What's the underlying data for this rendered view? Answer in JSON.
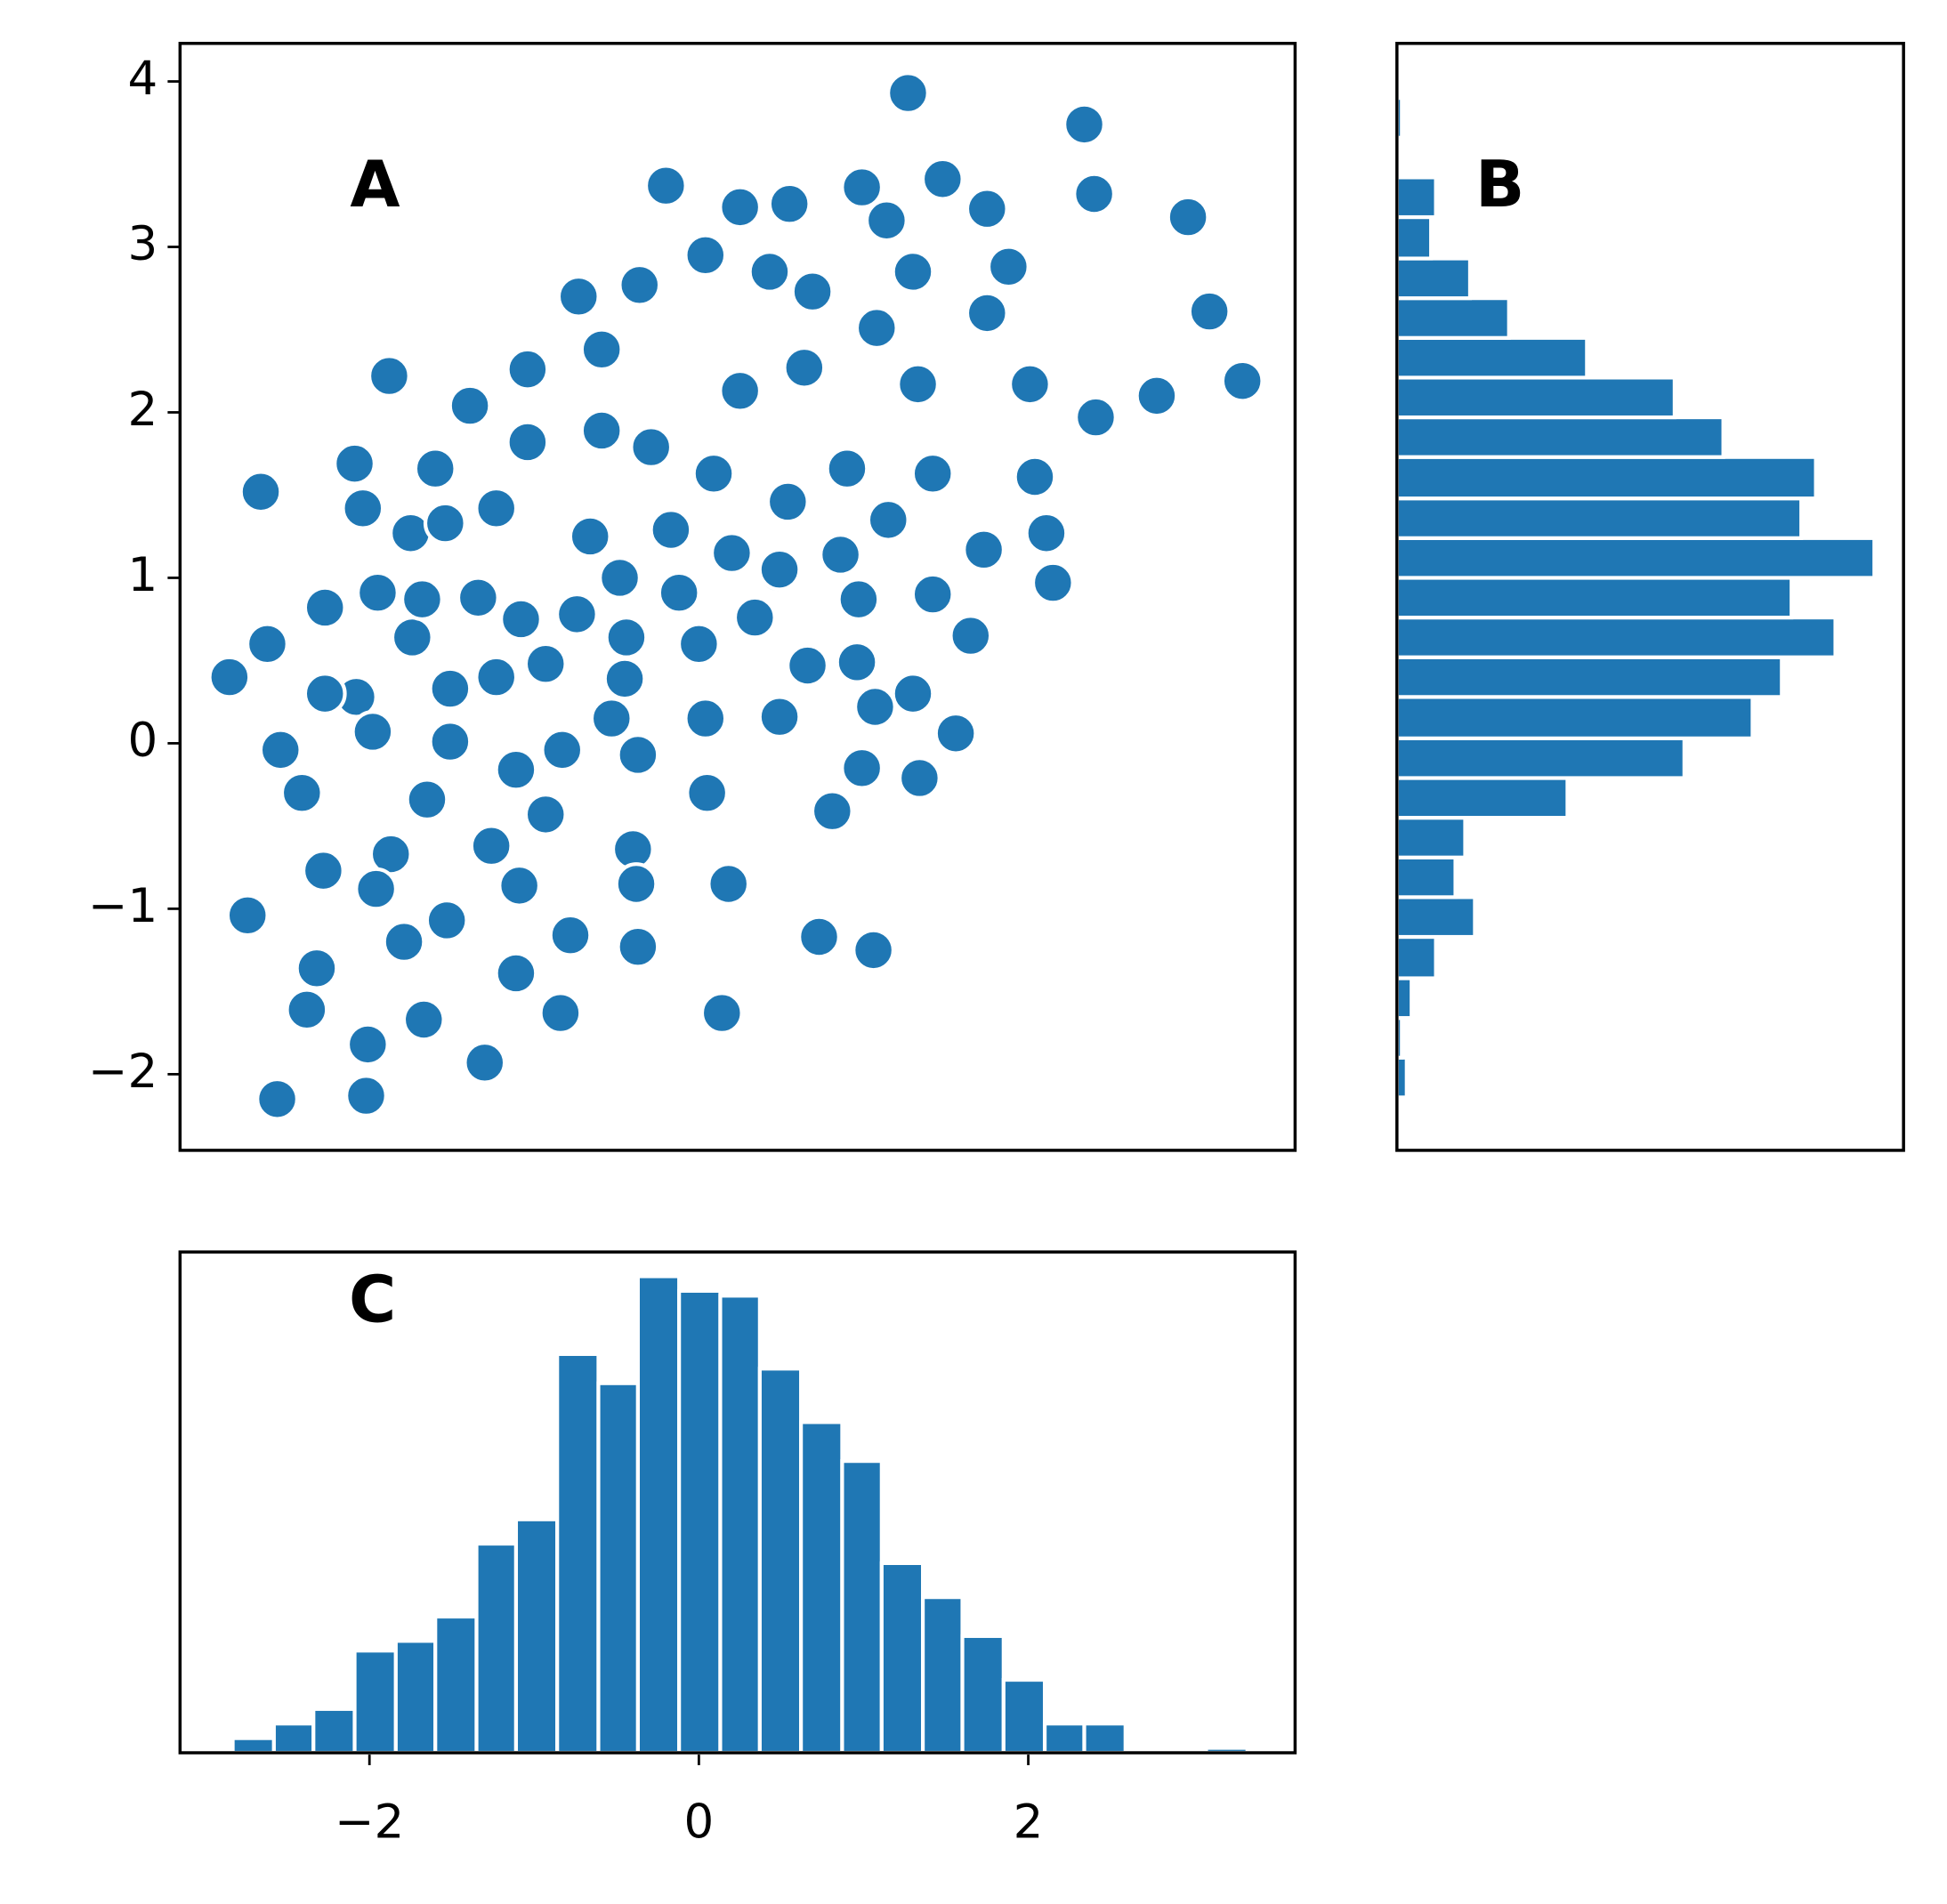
{
  "chart_data": [
    {
      "type": "scatter",
      "annotation": "A",
      "color": "#1f77b4",
      "edgecolor": "#ffffff",
      "xlim": [
        -3.15,
        3.62
      ],
      "ylim": [
        -2.46,
        4.23
      ],
      "yticks": [
        {
          "value": -2,
          "label": "−2"
        },
        {
          "value": -1,
          "label": "−1"
        },
        0,
        1,
        2,
        3,
        4
      ],
      "x": [
        1.27,
        2.34,
        2.4,
        2.97,
        3.1,
        3.3,
        2.78,
        -0.2,
        0.25,
        0.55,
        0.99,
        -1.88,
        -2.66,
        -2.85,
        -2.09,
        -2.74,
        -2.56,
        -2.02,
        -2.01,
        -1.3,
        -1.67,
        -2.38,
        -2.32,
        -0.84,
        0.14,
        0.73,
        1.06,
        1.56,
        1.34,
        -0.37,
        -0.78,
        -1.11,
        -1.79,
        -2.28,
        -2.62,
        -2.27,
        -2.54,
        -2.41,
        2.15,
        2.11,
        2.04,
        2.41,
        2.01,
        1.75,
        1.88,
        1.75,
        1.48,
        1.3,
        1.14,
        0.69,
        0.43,
        0.04,
        -0.36,
        -0.73,
        -0.59,
        -1.04,
        -1.39,
        0.25,
        0.64,
        1.33,
        1.08,
        -0.59,
        -1.04,
        -1.6,
        -2.04,
        -1.75,
        -1.54,
        -1.23,
        -0.29,
        0.09,
        0.54,
        0.9,
        1.42,
        1.15,
        1.73,
        1.42,
        1.65,
        0.97,
        0.86,
        0.48,
        0.2,
        -0.17,
        -0.66,
        -0.48,
        -0.12,
        -0.74,
        -0.93,
        -1.23,
        -1.51,
        -1.74,
        -1.95,
        -1.68,
        -2.08,
        -2.27,
        -1.98,
        -1.51,
        -1.65,
        -1.87,
        -1.96,
        -1.53,
        -1.09,
        -1.26,
        -0.93,
        -1.11,
        -0.83,
        -0.53,
        -0.37,
        -0.45,
        -0.44,
        0.0,
        0.04,
        0.05,
        -0.4,
        0.18,
        -0.38,
        0.66,
        0.96,
        0.49,
        1.07,
        1.3,
        0.81,
        0.99,
        0.49,
        0.34,
        -1.08,
        -1.34
      ],
      "y": [
        3.93,
        3.74,
        3.32,
        3.18,
        2.61,
        2.19,
        2.1,
        3.37,
        3.24,
        3.26,
        3.36,
        2.22,
        1.52,
        0.4,
        1.69,
        -1.04,
        -2.15,
        -2.13,
        -1.82,
        -1.93,
        -1.67,
        -1.61,
        -1.36,
        -1.63,
        -1.63,
        -1.17,
        -1.25,
        0.06,
        -0.21,
        -1.23,
        -1.16,
        -1.39,
        -1.2,
        -0.77,
        0.6,
        0.82,
        -0.04,
        -0.3,
        0.97,
        1.27,
        1.61,
        1.97,
        2.17,
        2.6,
        2.88,
        3.23,
        3.41,
        2.85,
        3.16,
        2.73,
        2.85,
        2.95,
        2.77,
        2.7,
        2.38,
        2.26,
        2.04,
        2.13,
        2.27,
        2.17,
        2.51,
        1.89,
        1.82,
        1.66,
        1.42,
        1.27,
        1.33,
        1.42,
        1.79,
        1.63,
        1.46,
        1.66,
        1.63,
        1.35,
        1.17,
        0.9,
        0.65,
        0.87,
        1.14,
        1.03,
        1.15,
        1.29,
        1.25,
        1.0,
        0.91,
        0.78,
        0.48,
        0.4,
        0.33,
        0.64,
        0.91,
        0.87,
        0.28,
        0.3,
        0.07,
        0.01,
        -0.34,
        -0.67,
        -0.88,
        -1.07,
        -0.86,
        -0.62,
        -0.43,
        -0.16,
        -0.04,
        0.15,
        -0.07,
        0.39,
        0.64,
        0.6,
        0.15,
        -0.3,
        -0.64,
        -0.85,
        -0.85,
        0.47,
        0.49,
        0.16,
        0.22,
        0.3,
        -0.41,
        -0.15,
        1.05,
        0.76,
        0.75,
        0.88
      ]
    },
    {
      "type": "histogram",
      "orientation": "horizontal",
      "annotation": "B",
      "color": "#1f77b4",
      "edgecolor": "#ffffff",
      "xlim": [
        0,
        104
      ],
      "ylim": [
        -2.46,
        4.23
      ],
      "bins": [
        -2.14,
        -1.9,
        -1.66,
        -1.42,
        -1.17,
        -0.93,
        -0.69,
        -0.45,
        -0.21,
        0.03,
        0.28,
        0.52,
        0.76,
        1.0,
        1.24,
        1.48,
        1.73,
        1.97,
        2.21,
        2.45,
        2.69,
        2.93,
        3.18,
        3.42,
        3.66,
        3.9
      ],
      "values": [
        2,
        1,
        3,
        8,
        16,
        12,
        14,
        35,
        59,
        73,
        79,
        90,
        81,
        98,
        83,
        86,
        67,
        57,
        39,
        23,
        15,
        7,
        8,
        0,
        1
      ]
    },
    {
      "type": "histogram",
      "orientation": "vertical",
      "annotation": "C",
      "color": "#1f77b4",
      "edgecolor": "#ffffff",
      "xlim": [
        -3.15,
        3.62
      ],
      "ylim": [
        0,
        103
      ],
      "xticks": [
        {
          "value": -2,
          "label": "−2"
        },
        0,
        2
      ],
      "bins": [
        -2.83,
        -2.58,
        -2.34,
        -2.09,
        -1.84,
        -1.6,
        -1.35,
        -1.11,
        -0.86,
        -0.61,
        -0.37,
        -0.12,
        0.13,
        0.37,
        0.62,
        0.87,
        1.11,
        1.36,
        1.6,
        1.85,
        2.1,
        2.34,
        2.59,
        2.84,
        3.08,
        3.33
      ],
      "values": [
        3,
        6,
        9,
        21,
        23,
        28,
        43,
        48,
        82,
        76,
        98,
        95,
        94,
        79,
        68,
        60,
        39,
        32,
        24,
        15,
        6,
        6,
        0,
        0,
        1
      ]
    }
  ]
}
